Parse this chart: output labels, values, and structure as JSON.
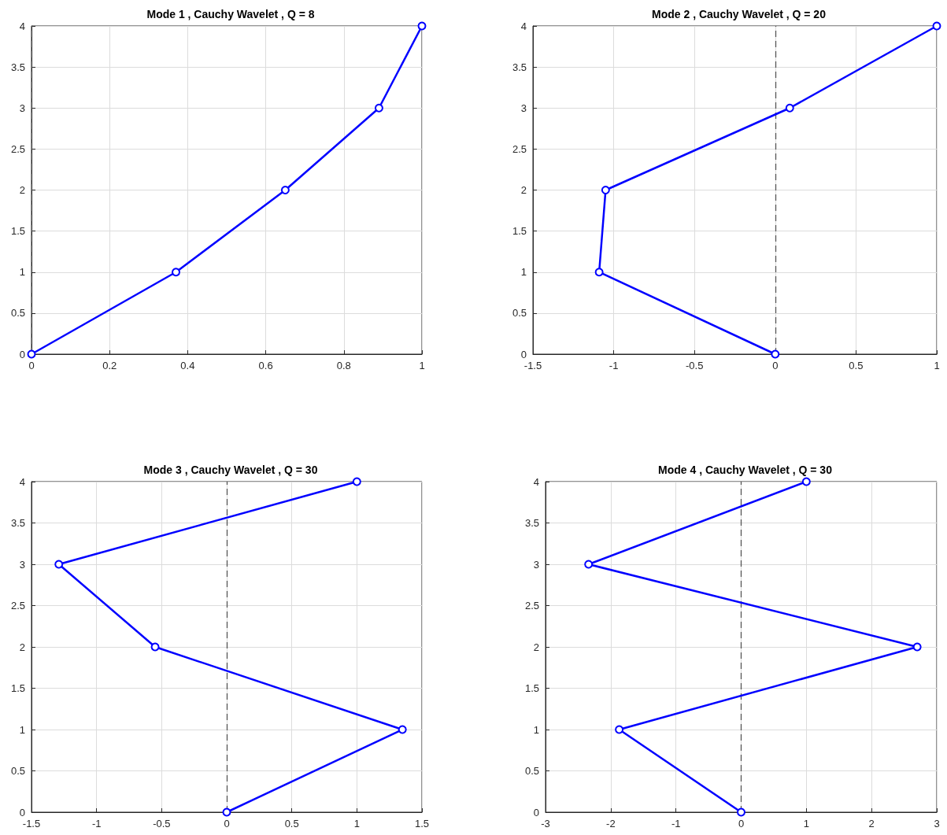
{
  "chart_data": [
    {
      "type": "line",
      "title": "Mode 1 , Cauchy Wavelet , Q = 8",
      "marker": "circle",
      "line_style": "solid",
      "grid": true,
      "xlim": [
        0,
        1
      ],
      "xticks": [
        0,
        0.2,
        0.4,
        0.6,
        0.8,
        1
      ],
      "ylim": [
        0,
        4
      ],
      "yticks": [
        0,
        0.5,
        1,
        1.5,
        2,
        2.5,
        3,
        3.5,
        4
      ],
      "series": [
        {
          "color": "#0000ff",
          "x": [
            0,
            0.37,
            0.65,
            0.89,
            1
          ],
          "values": [
            0,
            1,
            2,
            3,
            4
          ]
        }
      ],
      "ref_lines": [
        {
          "axis": "x",
          "value": 0,
          "color": "#555555",
          "line_style": "dashed"
        }
      ]
    },
    {
      "type": "line",
      "title": "Mode 2 , Cauchy Wavelet , Q = 20",
      "marker": "circle",
      "line_style": "solid",
      "grid": true,
      "xlim": [
        -1.5,
        1
      ],
      "xticks": [
        -1.5,
        -1,
        -0.5,
        0,
        0.5,
        1
      ],
      "ylim": [
        0,
        4
      ],
      "yticks": [
        0,
        0.5,
        1,
        1.5,
        2,
        2.5,
        3,
        3.5,
        4
      ],
      "series": [
        {
          "color": "#0000ff",
          "x": [
            0,
            -1.09,
            -1.05,
            0.09,
            1
          ],
          "values": [
            0,
            1,
            2,
            3,
            4
          ]
        }
      ],
      "ref_lines": [
        {
          "axis": "x",
          "value": 0,
          "color": "#555555",
          "line_style": "dashed"
        }
      ]
    },
    {
      "type": "line",
      "title": "Mode 3 , Cauchy Wavelet , Q = 30",
      "marker": "circle",
      "line_style": "solid",
      "grid": true,
      "xlim": [
        -1.5,
        1.5
      ],
      "xticks": [
        -1.5,
        -1,
        -0.5,
        0,
        0.5,
        1,
        1.5
      ],
      "ylim": [
        0,
        4
      ],
      "yticks": [
        0,
        0.5,
        1,
        1.5,
        2,
        2.5,
        3,
        3.5,
        4
      ],
      "series": [
        {
          "color": "#0000ff",
          "x": [
            0,
            1.35,
            -0.55,
            -1.29,
            1
          ],
          "values": [
            0,
            1,
            2,
            3,
            4
          ]
        }
      ],
      "ref_lines": [
        {
          "axis": "x",
          "value": 0,
          "color": "#555555",
          "line_style": "dashed"
        }
      ]
    },
    {
      "type": "line",
      "title": "Mode 4 , Cauchy Wavelet , Q = 30",
      "marker": "circle",
      "line_style": "solid",
      "grid": true,
      "xlim": [
        -3,
        3
      ],
      "xticks": [
        -3,
        -2,
        -1,
        0,
        1,
        2,
        3
      ],
      "ylim": [
        0,
        4
      ],
      "yticks": [
        0,
        0.5,
        1,
        1.5,
        2,
        2.5,
        3,
        3.5,
        4
      ],
      "series": [
        {
          "color": "#0000ff",
          "x": [
            0,
            -1.87,
            2.7,
            -2.34,
            1
          ],
          "values": [
            0,
            1,
            2,
            3,
            4
          ]
        }
      ],
      "ref_lines": [
        {
          "axis": "x",
          "value": 0,
          "color": "#555555",
          "line_style": "dashed"
        }
      ]
    }
  ]
}
